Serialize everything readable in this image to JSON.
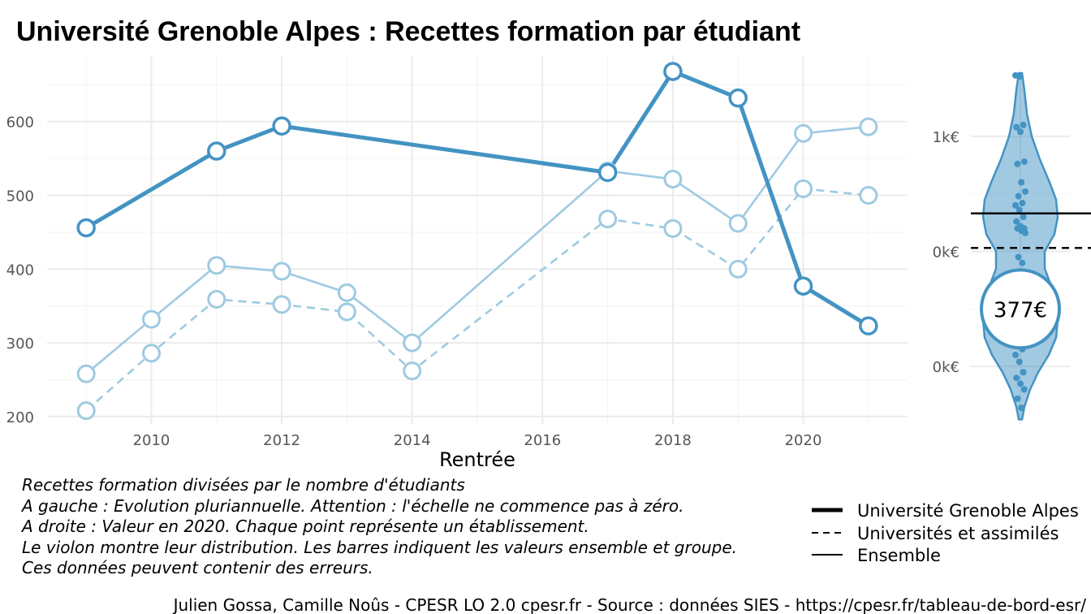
{
  "colors": {
    "main": "#4393c3",
    "light": "#9ecae1",
    "grid": "#ebebeb"
  },
  "chart_data": [
    {
      "type": "line",
      "title": "Université Grenoble Alpes  :  Recettes formation par étudiant",
      "xlabel": "Rentrée",
      "ylabel": "",
      "xlim": [
        2008.4,
        2021.6
      ],
      "ylim": [
        190,
        690
      ],
      "x_ticks": [
        2010,
        2012,
        2014,
        2016,
        2018,
        2020
      ],
      "y_ticks": [
        200,
        300,
        400,
        500,
        600
      ],
      "grid": true,
      "legend_position": "bottom-right",
      "series": [
        {
          "name": "Université Grenoble Alpes",
          "style": "thick",
          "points": [
            [
              2009,
              456
            ],
            [
              2011,
              560
            ],
            [
              2012,
              594
            ],
            [
              2017,
              531
            ],
            [
              2018,
              668
            ],
            [
              2019,
              632
            ],
            [
              2020,
              377
            ],
            [
              2021,
              323
            ]
          ]
        },
        {
          "name": "Universités et assimilés",
          "style": "dashed",
          "points": [
            [
              2009,
              208
            ],
            [
              2010,
              286
            ],
            [
              2011,
              359
            ],
            [
              2012,
              352
            ],
            [
              2013,
              342
            ],
            [
              2014,
              262
            ],
            [
              2017,
              468
            ],
            [
              2018,
              455
            ],
            [
              2019,
              400
            ],
            [
              2020,
              509
            ],
            [
              2021,
              500
            ]
          ]
        },
        {
          "name": "Ensemble",
          "style": "thin",
          "points": [
            [
              2009,
              258
            ],
            [
              2010,
              332
            ],
            [
              2011,
              405
            ],
            [
              2012,
              397
            ],
            [
              2013,
              368
            ],
            [
              2014,
              300
            ],
            [
              2017,
              533
            ],
            [
              2018,
              522
            ],
            [
              2019,
              462
            ],
            [
              2020,
              584
            ],
            [
              2021,
              593
            ]
          ]
        }
      ]
    },
    {
      "type": "violin",
      "y_ticks": [
        {
          "label": "1k€",
          "value": 1000
        },
        {
          "label": "0k€",
          "value": 0
        },
        {
          "label": "0k€",
          "value": -1000
        }
      ],
      "ylim": [
        -1500,
        1550
      ],
      "highlight_label": "377€",
      "highlight_value": -500,
      "line_ensemble": 330,
      "line_universites": 30,
      "points": [
        1530,
        1520,
        1100,
        1080,
        1040,
        780,
        760,
        600,
        520,
        480,
        420,
        400,
        360,
        300,
        260,
        220,
        200,
        200,
        180,
        160,
        -50,
        -100,
        -300,
        -380,
        -420,
        -480,
        -560,
        -620,
        -700,
        -740,
        -760,
        -800,
        -850,
        -900,
        -960,
        -1050,
        -1100,
        -1150,
        -1200,
        -1280,
        -1360
      ]
    }
  ],
  "notes": [
    "Recettes formation divisées par le nombre d'étudiants",
    "A gauche : Evolution pluriannuelle. Attention : l'échelle ne commence pas à zéro.",
    "A droite : Valeur en 2020. Chaque point représente un établissement.",
    "Le violon montre leur distribution. Les barres indiquent les valeurs ensemble et groupe.",
    "Ces données peuvent contenir des erreurs."
  ],
  "legend": [
    "Université Grenoble Alpes",
    "Universités et assimilés",
    "Ensemble"
  ],
  "caption": "Julien Gossa, Camille Noûs - CPESR LO 2.0 cpesr.fr - Source : données SIES - https://cpesr.fr/tableau-de-bord-esr/"
}
